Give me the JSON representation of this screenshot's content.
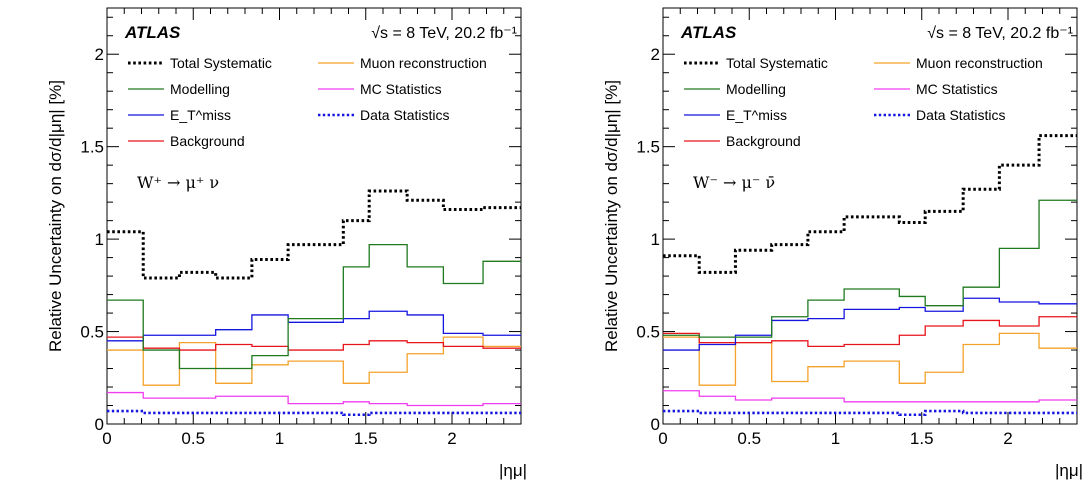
{
  "colors": {
    "total_systematic": "#000000",
    "modelling": "#1f7a1f",
    "etmiss": "#1515e0",
    "background": "#e8141c",
    "muon_reco": "#f4a22a",
    "mc_stats": "#f03cf0",
    "data_stats": "#1515e0"
  },
  "chart_data": [
    {
      "type": "line",
      "panel": "left",
      "experiment": "ATLAS",
      "energy_label": "√s = 8 TeV, 20.2 fb⁻¹",
      "process_label": "W⁺ → μ⁺ ν",
      "xlabel": "|ημ|",
      "ylabel": "Relative Uncertainty on  dσ/d|μη| [%]",
      "xlim": [
        0,
        2.4
      ],
      "ylim": [
        0,
        2.25
      ],
      "x_ticks": [
        "0",
        "0.5",
        "1",
        "1.5",
        "2"
      ],
      "y_ticks": [
        "0",
        "0.5",
        "1",
        "1.5",
        "2"
      ],
      "bin_edges": [
        0,
        0.21,
        0.42,
        0.63,
        0.84,
        1.05,
        1.37,
        1.52,
        1.74,
        1.95,
        2.18,
        2.4
      ],
      "series": [
        {
          "name": "Total Systematic",
          "key": "total_systematic",
          "style": "thick-dot",
          "values": [
            1.04,
            0.79,
            0.82,
            0.79,
            0.89,
            0.97,
            1.1,
            1.26,
            1.21,
            1.16,
            1.17
          ]
        },
        {
          "name": "Modelling",
          "key": "modelling",
          "style": "solid",
          "values": [
            0.67,
            0.4,
            0.3,
            0.3,
            0.37,
            0.57,
            0.85,
            0.97,
            0.85,
            0.76,
            0.88
          ]
        },
        {
          "name": "E_T^miss",
          "key": "etmiss",
          "style": "solid",
          "values": [
            0.45,
            0.48,
            0.48,
            0.51,
            0.59,
            0.55,
            0.57,
            0.61,
            0.59,
            0.49,
            0.48
          ]
        },
        {
          "name": "Background",
          "key": "background",
          "style": "solid",
          "values": [
            0.47,
            0.41,
            0.4,
            0.43,
            0.42,
            0.4,
            0.43,
            0.45,
            0.44,
            0.42,
            0.41
          ]
        },
        {
          "name": "Muon reconstruction",
          "key": "muon_reco",
          "style": "solid",
          "values": [
            0.4,
            0.21,
            0.44,
            0.22,
            0.32,
            0.34,
            0.22,
            0.28,
            0.38,
            0.47,
            0.42
          ]
        },
        {
          "name": "MC Statistics",
          "key": "mc_stats",
          "style": "solid",
          "values": [
            0.17,
            0.14,
            0.14,
            0.15,
            0.15,
            0.11,
            0.12,
            0.11,
            0.1,
            0.1,
            0.11
          ]
        },
        {
          "name": "Data Statistics",
          "key": "data_stats",
          "style": "dot",
          "values": [
            0.07,
            0.06,
            0.06,
            0.06,
            0.06,
            0.06,
            0.05,
            0.06,
            0.06,
            0.06,
            0.06
          ]
        }
      ]
    },
    {
      "type": "line",
      "panel": "right",
      "experiment": "ATLAS",
      "energy_label": "√s = 8 TeV, 20.2 fb⁻¹",
      "process_label": "W⁻ → μ⁻ ν̄",
      "xlabel": "|ημ|",
      "ylabel": "Relative Uncertainty on  dσ/d|μη| [%]",
      "xlim": [
        0,
        2.4
      ],
      "ylim": [
        0,
        2.25
      ],
      "x_ticks": [
        "0",
        "0.5",
        "1",
        "1.5",
        "2"
      ],
      "y_ticks": [
        "0",
        "0.5",
        "1",
        "1.5",
        "2"
      ],
      "bin_edges": [
        0,
        0.21,
        0.42,
        0.63,
        0.84,
        1.05,
        1.37,
        1.52,
        1.74,
        1.95,
        2.18,
        2.4
      ],
      "series": [
        {
          "name": "Total Systematic",
          "key": "total_systematic",
          "style": "thick-dot",
          "values": [
            0.91,
            0.82,
            0.94,
            0.97,
            1.04,
            1.12,
            1.09,
            1.15,
            1.27,
            1.4,
            1.56
          ]
        },
        {
          "name": "Modelling",
          "key": "modelling",
          "style": "solid",
          "values": [
            0.48,
            0.47,
            0.47,
            0.58,
            0.67,
            0.73,
            0.69,
            0.64,
            0.74,
            0.95,
            1.21
          ]
        },
        {
          "name": "E_T^miss",
          "key": "etmiss",
          "style": "solid",
          "values": [
            0.4,
            0.43,
            0.48,
            0.56,
            0.57,
            0.62,
            0.63,
            0.61,
            0.68,
            0.66,
            0.65
          ]
        },
        {
          "name": "Background",
          "key": "background",
          "style": "solid",
          "values": [
            0.49,
            0.44,
            0.44,
            0.45,
            0.42,
            0.43,
            0.48,
            0.53,
            0.56,
            0.53,
            0.58
          ]
        },
        {
          "name": "Muon reconstruction",
          "key": "muon_reco",
          "style": "solid",
          "values": [
            0.47,
            0.21,
            0.44,
            0.23,
            0.31,
            0.34,
            0.22,
            0.28,
            0.43,
            0.49,
            0.41
          ]
        },
        {
          "name": "MC Statistics",
          "key": "mc_stats",
          "style": "solid",
          "values": [
            0.18,
            0.15,
            0.13,
            0.14,
            0.14,
            0.12,
            0.12,
            0.12,
            0.12,
            0.12,
            0.13
          ]
        },
        {
          "name": "Data Statistics",
          "key": "data_stats",
          "style": "dot",
          "values": [
            0.07,
            0.06,
            0.06,
            0.06,
            0.06,
            0.06,
            0.05,
            0.07,
            0.06,
            0.06,
            0.06
          ]
        }
      ]
    }
  ]
}
